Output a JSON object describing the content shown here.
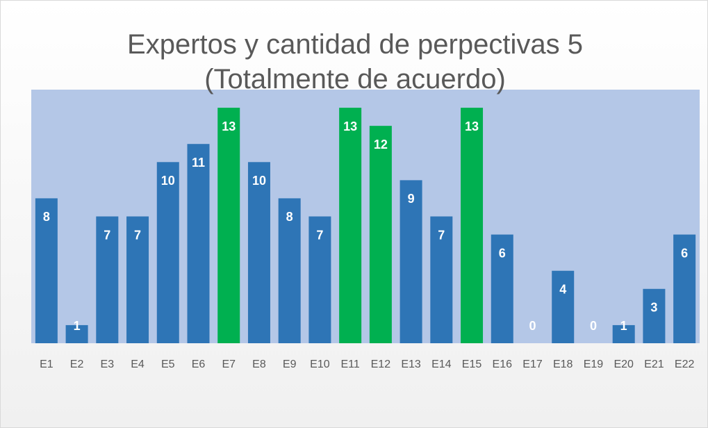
{
  "chart_data": {
    "type": "bar",
    "title": "Expertos y cantidad de perpectivas 5 (Totalmente de acuerdo)",
    "categories": [
      "E1",
      "E2",
      "E3",
      "E4",
      "E5",
      "E6",
      "E7",
      "E8",
      "E9",
      "E10",
      "E11",
      "E12",
      "E13",
      "E14",
      "E15",
      "E16",
      "E17",
      "E18",
      "E19",
      "E20",
      "E21",
      "E22"
    ],
    "values": [
      8,
      1,
      7,
      7,
      10,
      11,
      13,
      10,
      8,
      7,
      13,
      12,
      9,
      7,
      13,
      6,
      0,
      4,
      0,
      1,
      3,
      6
    ],
    "colors": [
      "#2e75b6",
      "#2e75b6",
      "#2e75b6",
      "#2e75b6",
      "#2e75b6",
      "#2e75b6",
      "#00b050",
      "#2e75b6",
      "#2e75b6",
      "#2e75b6",
      "#00b050",
      "#00b050",
      "#2e75b6",
      "#2e75b6",
      "#00b050",
      "#2e75b6",
      "#2e75b6",
      "#2e75b6",
      "#2e75b6",
      "#2e75b6",
      "#2e75b6",
      "#2e75b6"
    ],
    "ylim": [
      0,
      14
    ],
    "grid": false
  }
}
